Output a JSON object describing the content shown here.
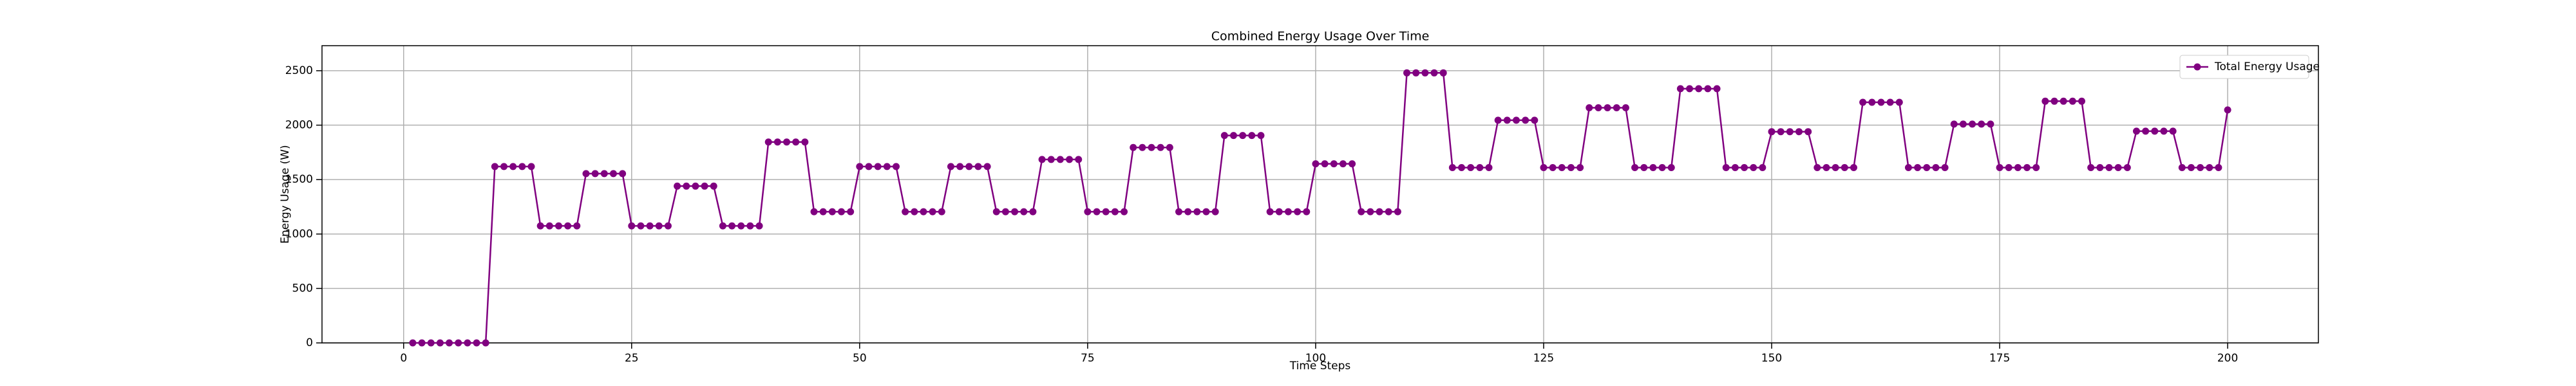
{
  "chart_data": {
    "type": "line",
    "title": "Combined Energy Usage Over Time",
    "xlabel": "Time Steps",
    "ylabel": "Energy Usage (W)",
    "x": [
      1,
      2,
      3,
      4,
      5,
      6,
      7,
      8,
      9,
      10,
      11,
      12,
      13,
      14,
      15,
      16,
      17,
      18,
      19,
      20,
      21,
      22,
      23,
      24,
      25,
      26,
      27,
      28,
      29,
      30,
      31,
      32,
      33,
      34,
      35,
      36,
      37,
      38,
      39,
      40,
      41,
      42,
      43,
      44,
      45,
      46,
      47,
      48,
      49,
      50,
      51,
      52,
      53,
      54,
      55,
      56,
      57,
      58,
      59,
      60,
      61,
      62,
      63,
      64,
      65,
      66,
      67,
      68,
      69,
      70,
      71,
      72,
      73,
      74,
      75,
      76,
      77,
      78,
      79,
      80,
      81,
      82,
      83,
      84,
      85,
      86,
      87,
      88,
      89,
      90,
      91,
      92,
      93,
      94,
      95,
      96,
      97,
      98,
      99,
      100,
      101,
      102,
      103,
      104,
      105,
      106,
      107,
      108,
      109,
      110,
      111,
      112,
      113,
      114,
      115,
      116,
      117,
      118,
      119,
      120,
      121,
      122,
      123,
      124,
      125,
      126,
      127,
      128,
      129,
      130,
      131,
      132,
      133,
      134,
      135,
      136,
      137,
      138,
      139,
      140,
      141,
      142,
      143,
      144,
      145,
      146,
      147,
      148,
      149,
      150,
      151,
      152,
      153,
      154,
      155,
      156,
      157,
      158,
      159,
      160,
      161,
      162,
      163,
      164,
      165,
      166,
      167,
      168,
      169,
      170,
      171,
      172,
      173,
      174,
      175,
      176,
      177,
      178,
      179,
      180,
      181,
      182,
      183,
      184,
      185,
      186,
      187,
      188,
      189,
      190,
      191,
      192,
      193,
      194,
      195,
      196,
      197,
      198,
      199,
      200
    ],
    "series": [
      {
        "name": "Total Energy Usage",
        "color": "#800080",
        "values": [
          0,
          0,
          0,
          0,
          0,
          0,
          0,
          0,
          0,
          1620,
          1620,
          1620,
          1620,
          1620,
          1075,
          1075,
          1075,
          1075,
          1075,
          1555,
          1555,
          1555,
          1555,
          1555,
          1075,
          1075,
          1075,
          1075,
          1075,
          1440,
          1440,
          1440,
          1440,
          1440,
          1075,
          1075,
          1075,
          1075,
          1075,
          1845,
          1845,
          1845,
          1845,
          1845,
          1205,
          1205,
          1205,
          1205,
          1205,
          1620,
          1620,
          1620,
          1620,
          1620,
          1205,
          1205,
          1205,
          1205,
          1205,
          1620,
          1620,
          1620,
          1620,
          1620,
          1205,
          1205,
          1205,
          1205,
          1205,
          1685,
          1685,
          1685,
          1685,
          1685,
          1205,
          1205,
          1205,
          1205,
          1205,
          1795,
          1795,
          1795,
          1795,
          1795,
          1205,
          1205,
          1205,
          1205,
          1205,
          1905,
          1905,
          1905,
          1905,
          1905,
          1205,
          1205,
          1205,
          1205,
          1205,
          1645,
          1645,
          1645,
          1645,
          1645,
          1205,
          1205,
          1205,
          1205,
          1205,
          2480,
          2480,
          2480,
          2480,
          2480,
          1610,
          1610,
          1610,
          1610,
          1610,
          2045,
          2045,
          2045,
          2045,
          2045,
          1610,
          1610,
          1610,
          1610,
          1610,
          2160,
          2160,
          2160,
          2160,
          2160,
          1610,
          1610,
          1610,
          1610,
          1610,
          2335,
          2335,
          2335,
          2335,
          2335,
          1610,
          1610,
          1610,
          1610,
          1610,
          1940,
          1940,
          1940,
          1940,
          1940,
          1610,
          1610,
          1610,
          1610,
          1610,
          2210,
          2210,
          2210,
          2210,
          2210,
          1610,
          1610,
          1610,
          1610,
          1610,
          2010,
          2010,
          2010,
          2010,
          2010,
          1610,
          1610,
          1610,
          1610,
          1610,
          2220,
          2220,
          2220,
          2220,
          2220,
          1610,
          1610,
          1610,
          1610,
          1610,
          1945,
          1945,
          1945,
          1945,
          1945,
          1610,
          1610,
          1610,
          1610,
          1610,
          2140
        ]
      }
    ],
    "xlim": [
      -8.95,
      209.95
    ],
    "xticks": [
      0,
      25,
      50,
      75,
      100,
      125,
      150,
      175,
      200
    ],
    "ylim": [
      0,
      2730
    ],
    "yticks": [
      0,
      500,
      1000,
      1500,
      2000,
      2500
    ],
    "grid": true,
    "legend": "upper right"
  }
}
